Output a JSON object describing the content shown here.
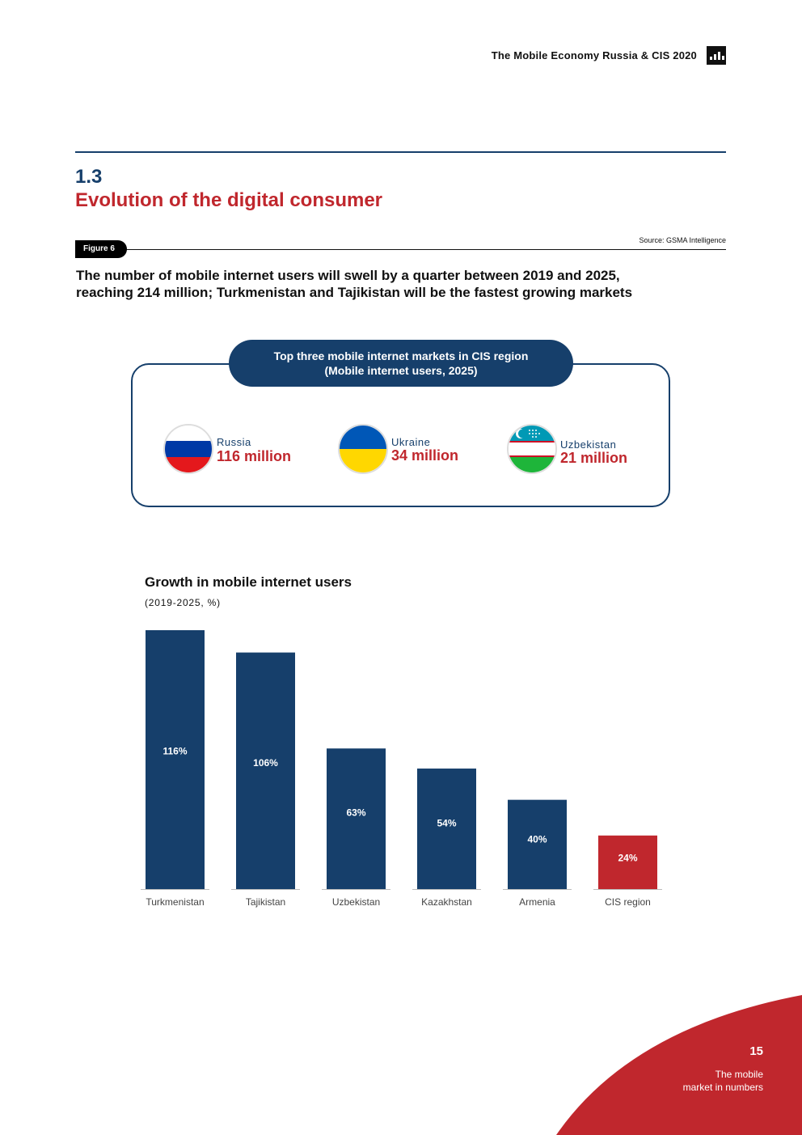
{
  "header": {
    "title": "The Mobile Economy Russia & CIS 2020"
  },
  "section": {
    "number": "1.3",
    "title": "Evolution of the digital consumer"
  },
  "figure": {
    "label": "Figure 6",
    "source": "Source: GSMA Intelligence",
    "headline_line1": "The number of mobile internet users will swell by a quarter between 2019 and 2025,",
    "headline_line2": "reaching 214 million; Turkmenistan and Tajikistan will be the fastest growing markets"
  },
  "top_markets": {
    "title_line1": "Top three mobile internet markets in CIS region",
    "title_line2": "(Mobile internet users, 2025)",
    "items": [
      {
        "country": "Russia",
        "value": "116 million",
        "flag": "russia-flag-icon"
      },
      {
        "country": "Ukraine",
        "value": "34 million",
        "flag": "ukraine-flag-icon"
      },
      {
        "country": "Uzbekistan",
        "value": "21 million",
        "flag": "uzbekistan-flag-icon"
      }
    ]
  },
  "colors": {
    "navy": "#163f6b",
    "red": "#c0272d"
  },
  "chart_data": {
    "type": "bar",
    "title": "Growth in mobile internet users",
    "subtitle": "(2019-2025, %)",
    "categories": [
      "Turkmenistan",
      "Tajikistan",
      "Uzbekistan",
      "Kazakhstan",
      "Armenia",
      "CIS region"
    ],
    "values": [
      116,
      106,
      63,
      54,
      40,
      24
    ],
    "data_labels": [
      "116%",
      "106%",
      "63%",
      "54%",
      "40%",
      "24%"
    ],
    "unit": "%",
    "ylim": [
      0,
      116
    ],
    "grid": false,
    "bar_colors": [
      "#163f6b",
      "#163f6b",
      "#163f6b",
      "#163f6b",
      "#163f6b",
      "#c0272d"
    ]
  },
  "footer": {
    "page_number": "15",
    "section_line1": "The mobile",
    "section_line2": "market in numbers"
  }
}
